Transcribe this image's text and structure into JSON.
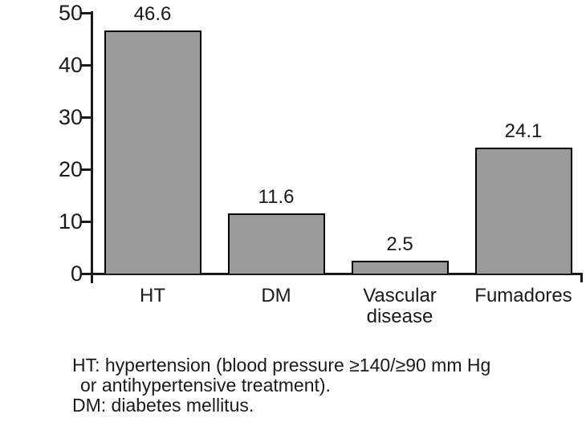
{
  "chart_data": {
    "type": "bar",
    "categories": [
      "HT",
      "DM",
      "Vascular disease",
      "Fumadores"
    ],
    "values": [
      46.6,
      11.6,
      2.5,
      24.1
    ],
    "data_labels": [
      "46.6",
      "11.6",
      "2.5",
      "24.1"
    ],
    "title": "",
    "xlabel": "",
    "ylabel": "",
    "ylim": [
      0,
      50
    ],
    "yticks": [
      0,
      10,
      20,
      30,
      40,
      50
    ],
    "ytick_labels": [
      "0",
      "10",
      "20",
      "30",
      "40",
      "50"
    ],
    "grid": false,
    "legend": "none",
    "bar_fill_color": "#9a9a9a",
    "bar_border_color": "#000000",
    "axis_color": "#1a1a1a",
    "text_color": "#1a1a1a",
    "background_color": "#ffffff"
  },
  "footnote": {
    "lines": [
      "HT: hypertension (blood pressure ≥140/≥90 mm Hg",
      "or antihypertensive treatment).",
      "DM: diabetes mellitus."
    ]
  }
}
